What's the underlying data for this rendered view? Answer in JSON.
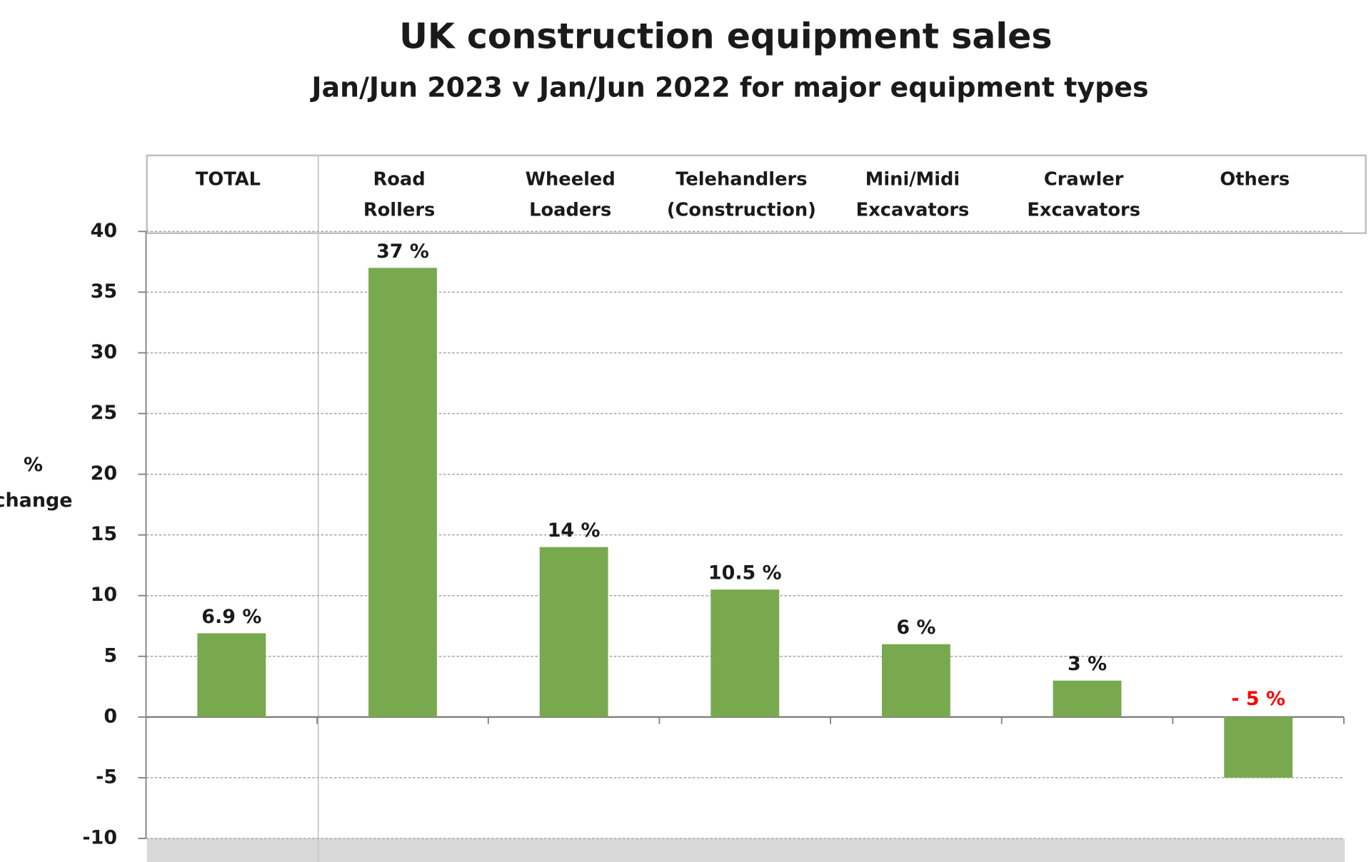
{
  "chart_data": {
    "type": "bar",
    "title": "UK construction equipment sales",
    "subtitle": "Jan/Jun 2023  v  Jan/Jun 2022 for major equipment types",
    "y_label": [
      "%",
      "change"
    ],
    "categories": [
      [
        "TOTAL"
      ],
      [
        "Road",
        "Rollers"
      ],
      [
        "Wheeled",
        "Loaders"
      ],
      [
        "Telehandlers",
        "(Construction)"
      ],
      [
        "Mini/Midi",
        "Excavators"
      ],
      [
        "Crawler",
        "Excavators"
      ],
      [
        "Others"
      ]
    ],
    "values": [
      6.9,
      37,
      14,
      10.5,
      6,
      3,
      -5
    ],
    "value_labels": [
      "6.9 %",
      "37 %",
      "14 %",
      "10.5 %",
      "6 %",
      "3 %",
      "- 5 %"
    ],
    "value_label_colors": [
      "#1a1a1a",
      "#1a1a1a",
      "#1a1a1a",
      "#1a1a1a",
      "#1a1a1a",
      "#1a1a1a",
      "#ff0000"
    ],
    "color": "#78a94f",
    "ylim": [
      -10,
      40
    ],
    "yticks": [
      -10,
      -5,
      0,
      5,
      10,
      15,
      20,
      25,
      30,
      35,
      40
    ],
    "grid": true
  }
}
